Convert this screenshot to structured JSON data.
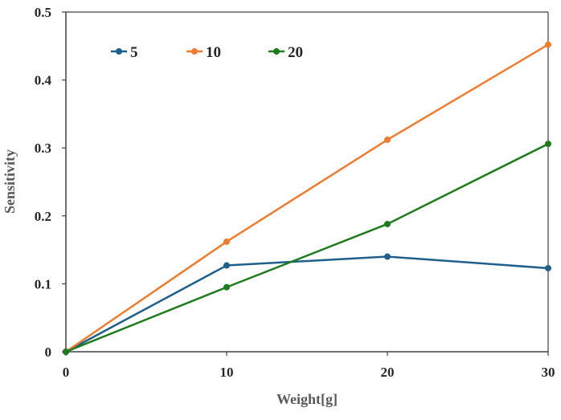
{
  "chart_data": {
    "type": "line",
    "title": "",
    "xlabel": "Weight[g]",
    "ylabel": "Sensitivity",
    "x": [
      0,
      10,
      20,
      30
    ],
    "xlim": [
      0,
      30
    ],
    "ylim": [
      0,
      0.5
    ],
    "xticks": [
      "0",
      "10",
      "20",
      "30"
    ],
    "yticks": [
      "0",
      "0.1",
      "0.2",
      "0.3",
      "0.4",
      "0.5"
    ],
    "grid": false,
    "legend_position": "top-left",
    "series": [
      {
        "name": "5",
        "color": "#1f5f8b",
        "values": [
          0,
          0.127,
          0.14,
          0.123
        ]
      },
      {
        "name": "10",
        "color": "#ed7d31",
        "values": [
          0,
          0.162,
          0.312,
          0.452
        ]
      },
      {
        "name": "20",
        "color": "#1e7b1e",
        "values": [
          0,
          0.095,
          0.188,
          0.306
        ]
      }
    ]
  }
}
